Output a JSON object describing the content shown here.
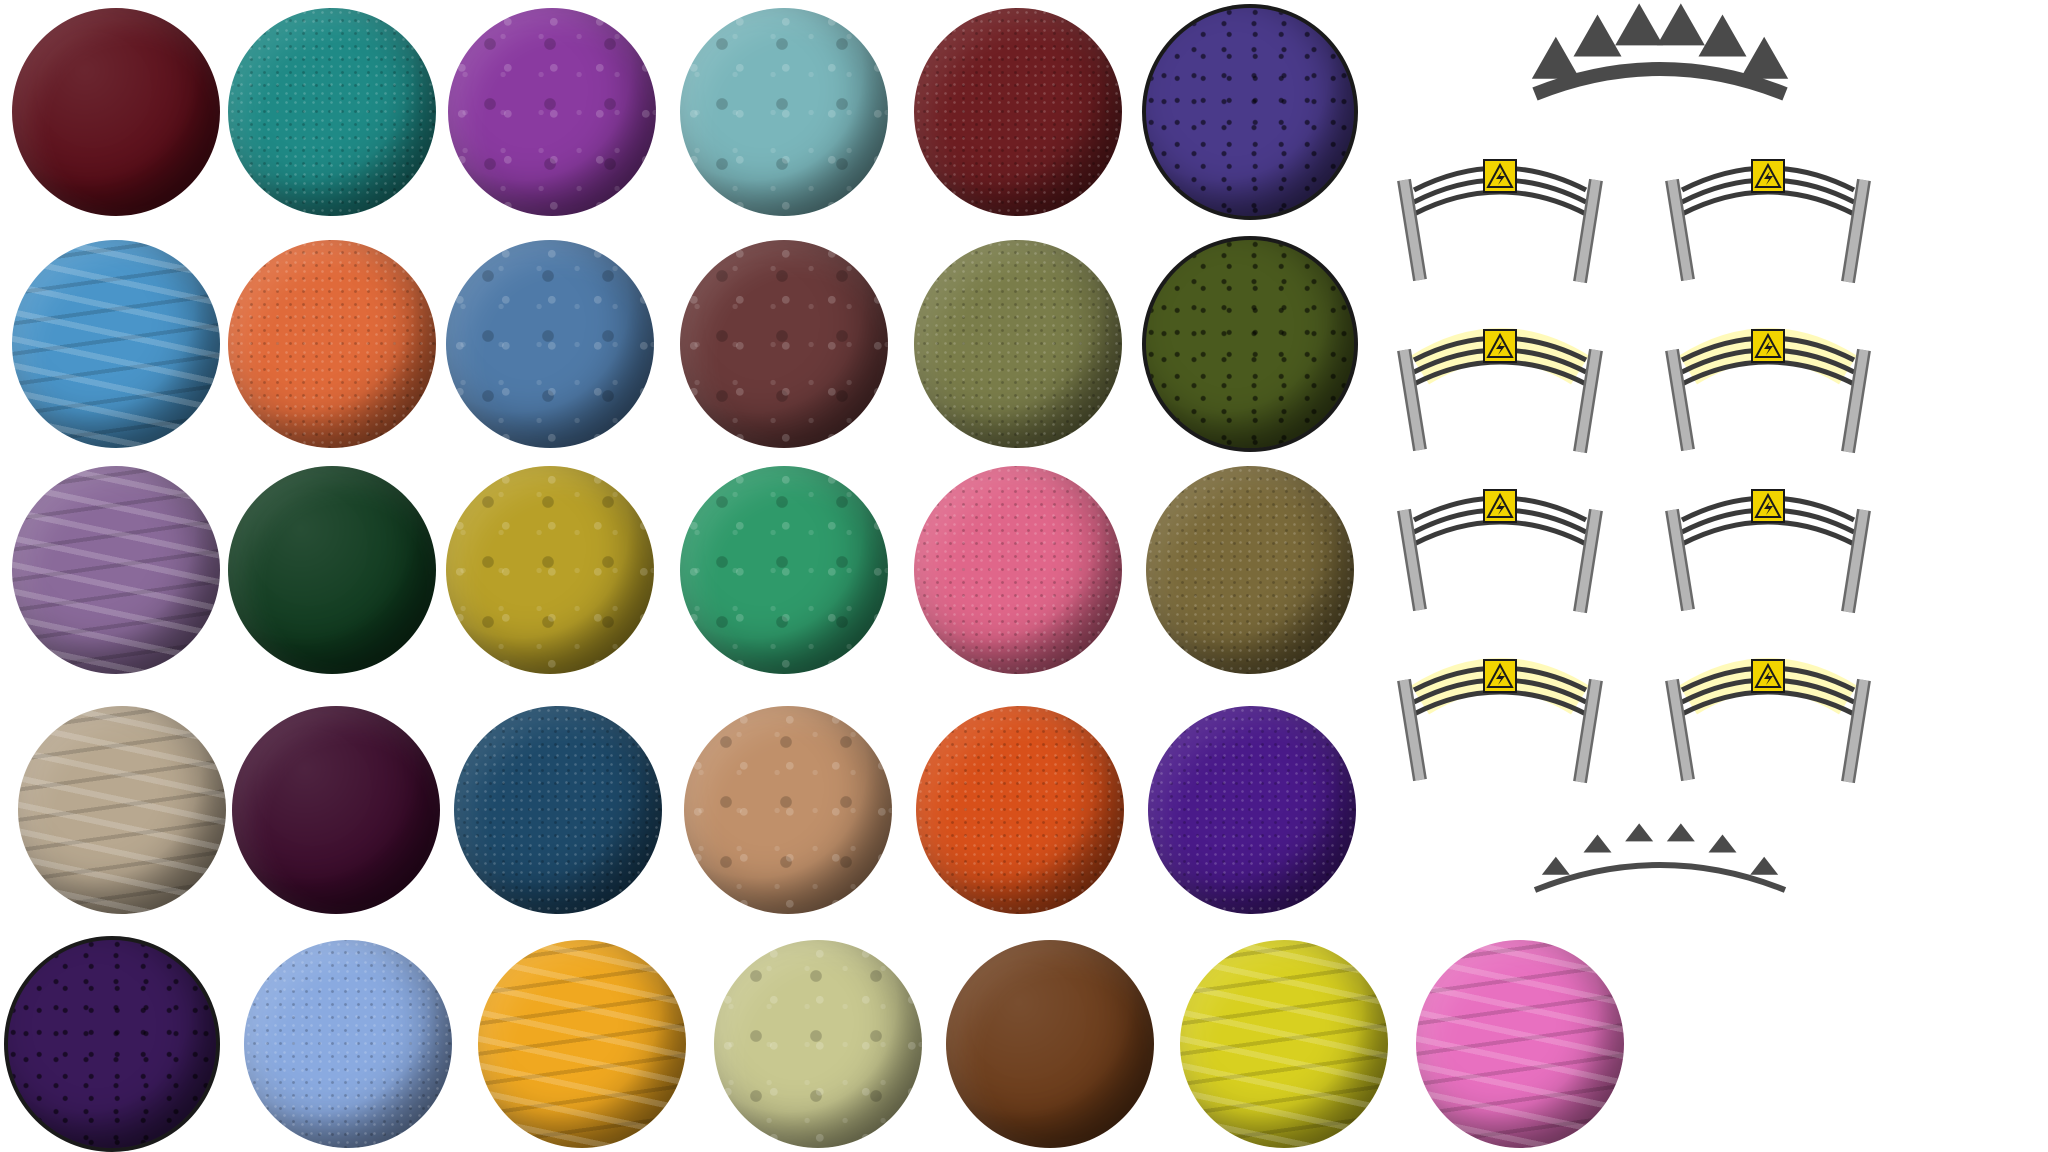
{
  "sprite_sheet": {
    "planets": [
      {
        "name": "planet-maroon",
        "row": 0,
        "col": 0,
        "color": "#5a0d18",
        "texture": "smooth"
      },
      {
        "name": "planet-teal",
        "row": 0,
        "col": 1,
        "color": "#1f8a86",
        "texture": "speckle"
      },
      {
        "name": "planet-purple",
        "row": 0,
        "col": 2,
        "color": "#8a3aa0",
        "texture": "blotch"
      },
      {
        "name": "planet-light-teal",
        "row": 0,
        "col": 3,
        "color": "#7ab6bb",
        "texture": "blotch"
      },
      {
        "name": "planet-dark-red",
        "row": 0,
        "col": 4,
        "color": "#6e1e22",
        "texture": "speckle"
      },
      {
        "name": "planet-multicolor-stone",
        "row": 0,
        "col": 5,
        "color": "#4a3a8a",
        "texture": "stone",
        "outlined": true
      },
      {
        "name": "planet-blue-wave",
        "row": 1,
        "col": 0,
        "color": "#4a95c9",
        "texture": "wave"
      },
      {
        "name": "planet-orange",
        "row": 1,
        "col": 1,
        "color": "#e06a3a",
        "texture": "speckle"
      },
      {
        "name": "planet-slate-blue",
        "row": 1,
        "col": 2,
        "color": "#4f7aa8",
        "texture": "blotch"
      },
      {
        "name": "planet-brown-purple",
        "row": 1,
        "col": 3,
        "color": "#6a3a3a",
        "texture": "blotch"
      },
      {
        "name": "planet-olive",
        "row": 1,
        "col": 4,
        "color": "#7a7d4a",
        "texture": "speckle"
      },
      {
        "name": "planet-green-stone",
        "row": 1,
        "col": 5,
        "color": "#4a5a1e",
        "texture": "stone",
        "outlined": true
      },
      {
        "name": "planet-mauve-wave",
        "row": 2,
        "col": 0,
        "color": "#8a6a9a",
        "texture": "wave"
      },
      {
        "name": "planet-dark-green",
        "row": 2,
        "col": 1,
        "color": "#0f3a1e",
        "texture": "smooth"
      },
      {
        "name": "planet-mustard",
        "row": 2,
        "col": 2,
        "color": "#b8a028",
        "texture": "blotch"
      },
      {
        "name": "planet-green",
        "row": 2,
        "col": 3,
        "color": "#2f9a6a",
        "texture": "blotch"
      },
      {
        "name": "planet-pink",
        "row": 2,
        "col": 4,
        "color": "#e0668a",
        "texture": "speckle"
      },
      {
        "name": "planet-camo",
        "row": 2,
        "col": 5,
        "color": "#7a6a3a",
        "texture": "speckle"
      },
      {
        "name": "planet-beige-wave",
        "row": 3,
        "col": 0,
        "color": "#b8a890",
        "texture": "wave"
      },
      {
        "name": "planet-plum-black",
        "row": 3,
        "col": 1,
        "color": "#3a0a2a",
        "texture": "smooth"
      },
      {
        "name": "planet-navy",
        "row": 3,
        "col": 2,
        "color": "#1e4a6a",
        "texture": "speckle"
      },
      {
        "name": "planet-tan",
        "row": 3,
        "col": 3,
        "color": "#c0906a",
        "texture": "blotch"
      },
      {
        "name": "planet-red-orange",
        "row": 3,
        "col": 4,
        "color": "#d8501a",
        "texture": "speckle"
      },
      {
        "name": "planet-violet",
        "row": 3,
        "col": 5,
        "color": "#4a1a8a",
        "texture": "speckle"
      },
      {
        "name": "planet-purple-stone",
        "row": 4,
        "col": 0,
        "color": "#3a1a5a",
        "texture": "stone",
        "outlined": true
      },
      {
        "name": "planet-periwinkle",
        "row": 4,
        "col": 1,
        "color": "#8aaae0",
        "texture": "speckle"
      },
      {
        "name": "planet-amber",
        "row": 4,
        "col": 2,
        "color": "#f0a820",
        "texture": "wave"
      },
      {
        "name": "planet-pastel-spots",
        "row": 4,
        "col": 3,
        "color": "#c8c890",
        "texture": "blotch"
      },
      {
        "name": "planet-brown",
        "row": 4,
        "col": 4,
        "color": "#6a3a18",
        "texture": "smooth"
      },
      {
        "name": "planet-yellow",
        "row": 4,
        "col": 5,
        "color": "#d8d020",
        "texture": "wave"
      },
      {
        "name": "planet-hot-pink",
        "row": 4,
        "col": 6,
        "color": "#e870c0",
        "texture": "wave"
      }
    ],
    "fences": [
      {
        "name": "electric-fence-off",
        "row": 0,
        "col": 0,
        "glow": false
      },
      {
        "name": "electric-fence-off",
        "row": 0,
        "col": 1,
        "glow": false
      },
      {
        "name": "electric-fence-on",
        "row": 1,
        "col": 0,
        "glow": true
      },
      {
        "name": "electric-fence-on",
        "row": 1,
        "col": 1,
        "glow": true
      },
      {
        "name": "electric-fence-off",
        "row": 2,
        "col": 0,
        "glow": false
      },
      {
        "name": "electric-fence-off",
        "row": 2,
        "col": 1,
        "glow": false
      },
      {
        "name": "electric-fence-on",
        "row": 3,
        "col": 0,
        "glow": true
      },
      {
        "name": "electric-fence-on",
        "row": 3,
        "col": 1,
        "glow": true
      }
    ],
    "colors": {
      "fence_post": "#b5b5b5",
      "fence_post_stroke": "#6a6a6a",
      "wire": "#3a3a3a",
      "sign_fill": "#f2d400",
      "sign_stroke": "#1a1a1a",
      "glow": "#fff23a",
      "spike": "#4a4a4a"
    }
  }
}
